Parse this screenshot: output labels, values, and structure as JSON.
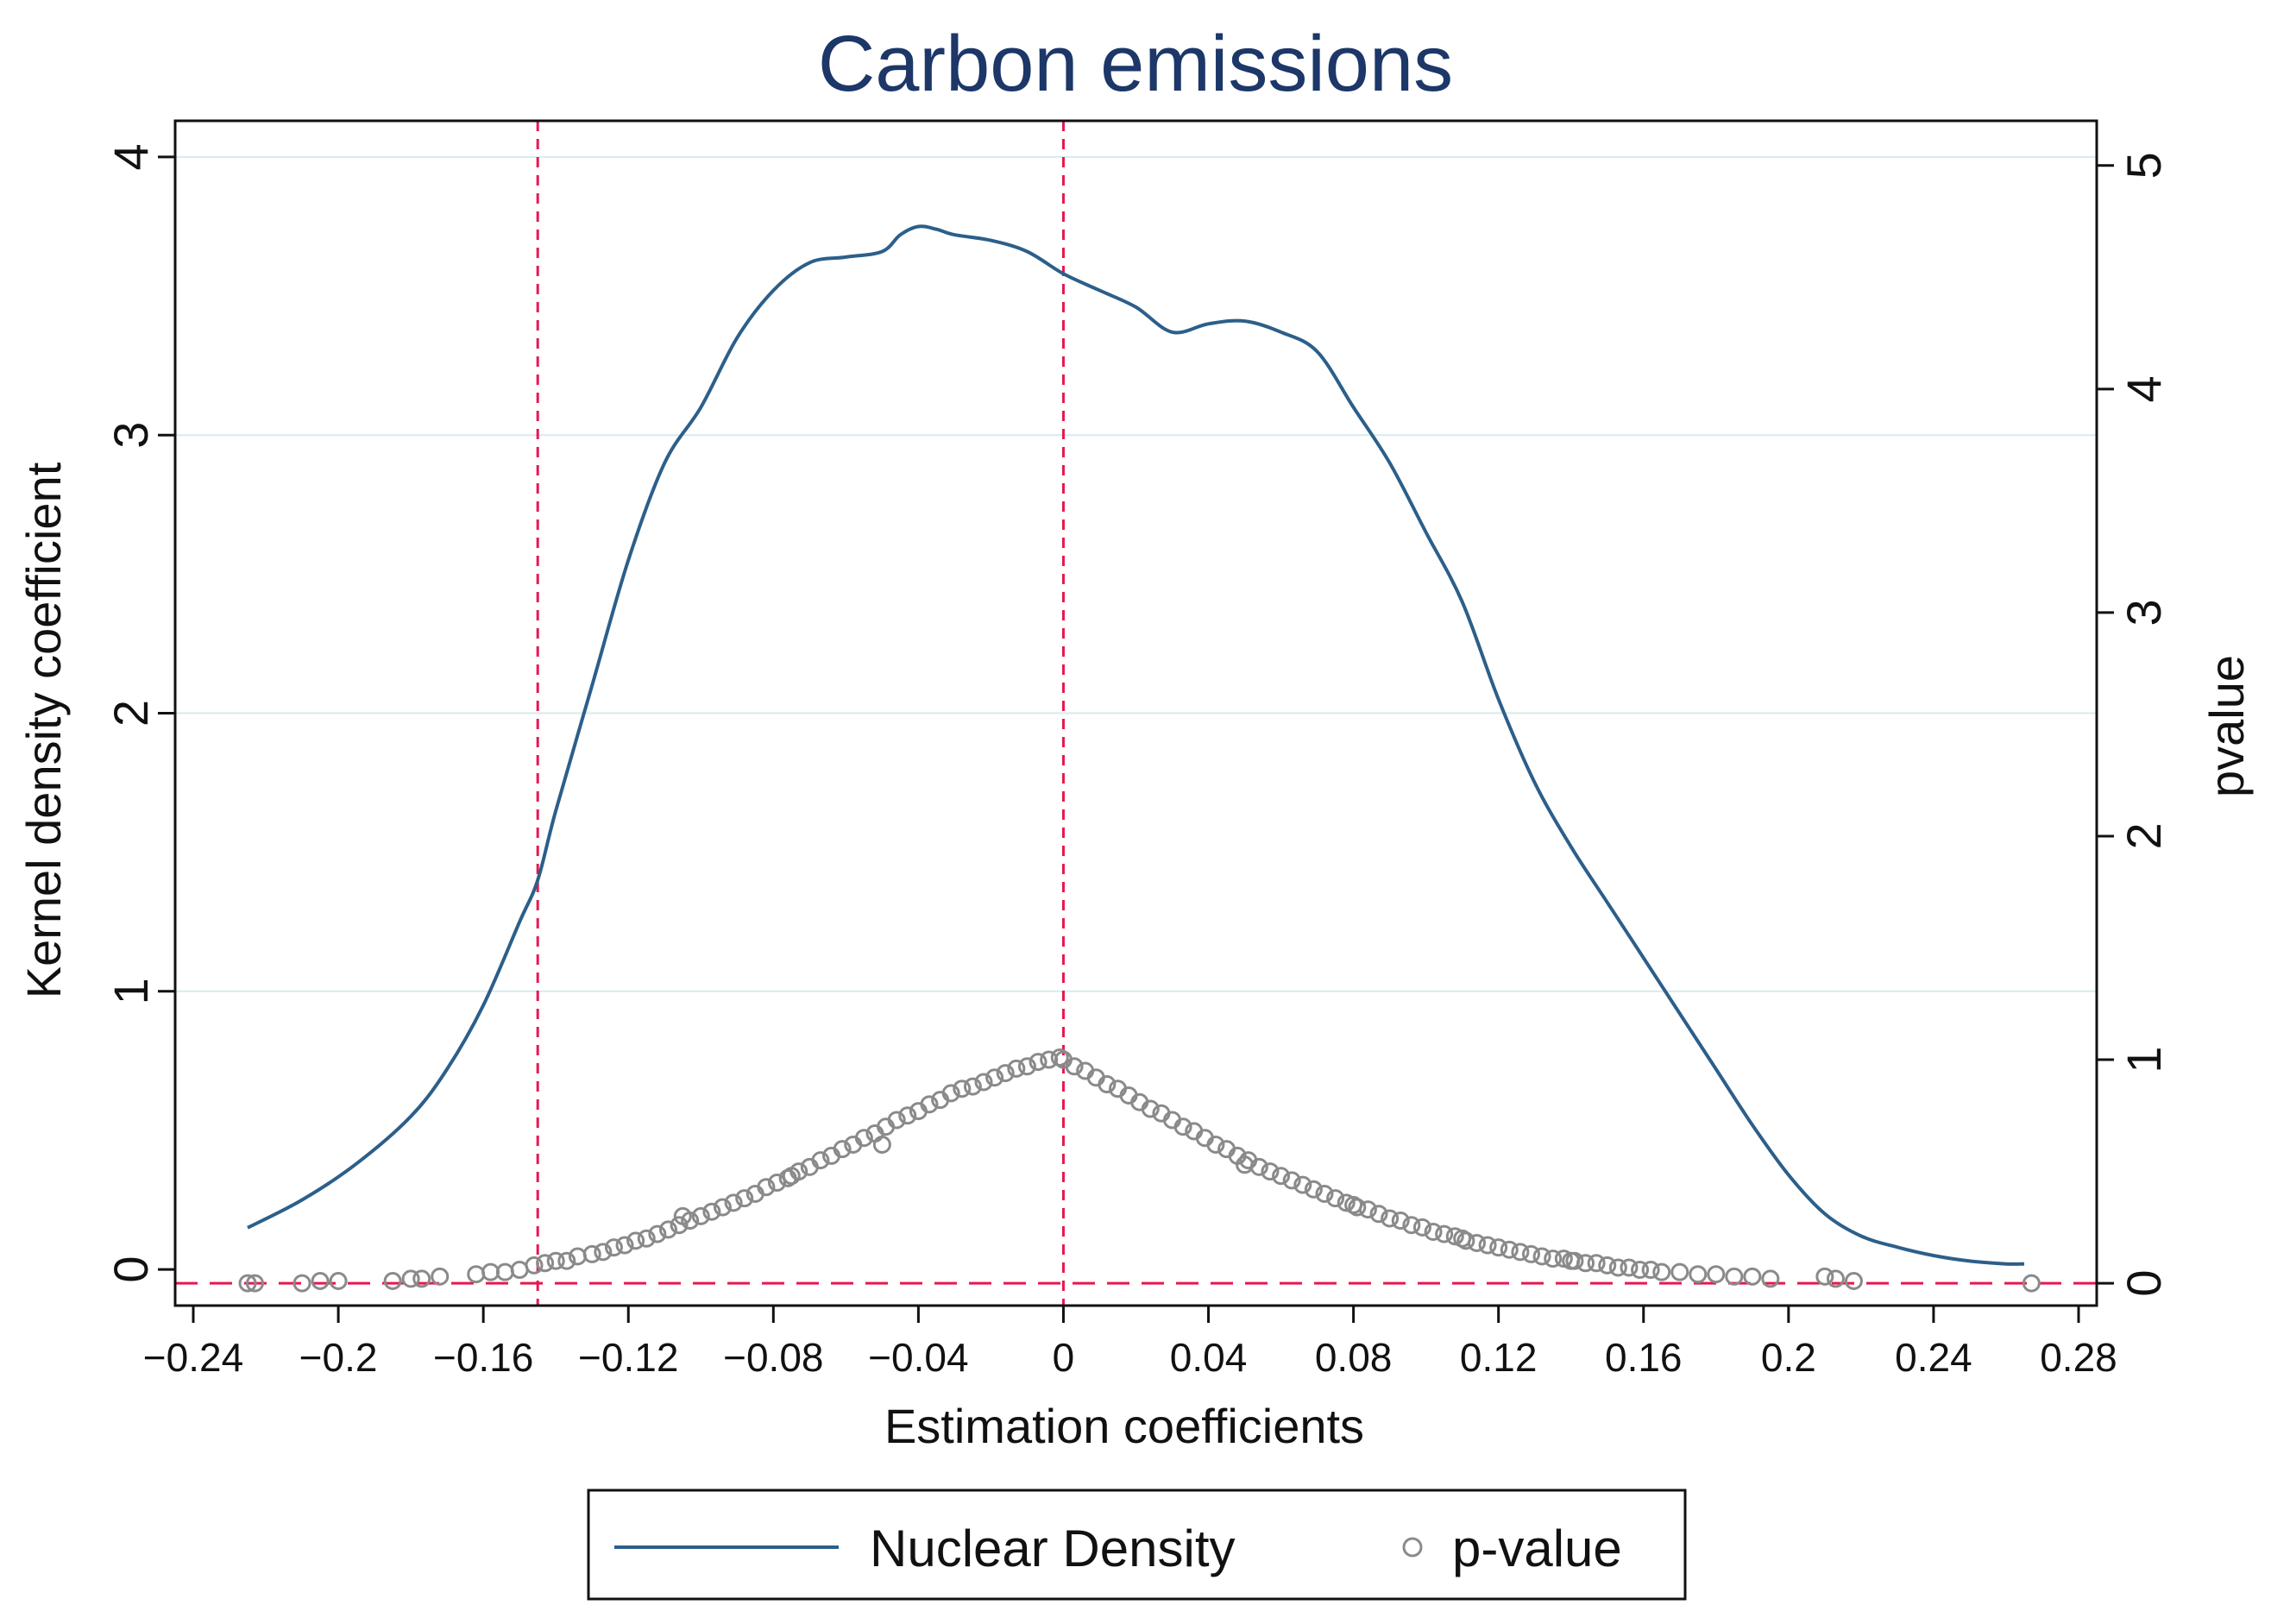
{
  "chart_data": {
    "type": "line",
    "title": "Carbon emissions",
    "xlabel": "Estimation coefficients",
    "ylabel": "Kernel density coefficient",
    "y2label": "pvalue",
    "xlim": [
      -0.245,
      0.285
    ],
    "ylim": [
      -0.13,
      4.13
    ],
    "y2lim": [
      -0.1,
      5.2
    ],
    "xticks": [
      -0.24,
      -0.2,
      -0.16,
      -0.12,
      -0.08,
      -0.04,
      0,
      0.04,
      0.08,
      0.12,
      0.16,
      0.2,
      0.24,
      0.28
    ],
    "xtick_labels": [
      "−0.24",
      "−0.2",
      "−0.16",
      "−0.12",
      "−0.08",
      "−0.04",
      "0",
      "0.04",
      "0.08",
      "0.12",
      "0.16",
      "0.2",
      "0.24",
      "0.28"
    ],
    "yticks": [
      0,
      1,
      2,
      3,
      4
    ],
    "ytick_labels": [
      "0",
      "1",
      "2",
      "3",
      "4"
    ],
    "y2ticks": [
      0,
      1,
      2,
      3,
      4,
      5
    ],
    "y2tick_labels": [
      "0",
      "1",
      "2",
      "3",
      "4",
      "5"
    ],
    "grid": "horizontal",
    "legend": {
      "position": "bottom",
      "entries": [
        "Nuclear Density",
        "p-value"
      ]
    },
    "reference_lines": {
      "vertical": [
        -0.145,
        0
      ],
      "horizontal_y2": [
        0
      ]
    },
    "colors": {
      "density": "#2c5f8a",
      "pvalue": "#8a8a8a",
      "refline": "#e8174f",
      "grid": "#d6ebee",
      "title": "#1c3768"
    },
    "series": [
      {
        "name": "Nuclear Density",
        "axis": "left",
        "x": [
          -0.225,
          -0.21,
          -0.195,
          -0.18,
          -0.17,
          -0.16,
          -0.15,
          -0.145,
          -0.14,
          -0.13,
          -0.12,
          -0.11,
          -0.1,
          -0.09,
          -0.08,
          -0.07,
          -0.06,
          -0.05,
          -0.045,
          -0.04,
          -0.035,
          -0.03,
          -0.02,
          -0.01,
          0,
          0.01,
          0.02,
          0.03,
          0.04,
          0.05,
          0.06,
          0.07,
          0.08,
          0.09,
          0.1,
          0.11,
          0.12,
          0.13,
          0.14,
          0.15,
          0.16,
          0.17,
          0.18,
          0.19,
          0.2,
          0.21,
          0.22,
          0.23,
          0.24,
          0.25,
          0.26,
          0.265
        ],
        "y": [
          0.15,
          0.25,
          0.38,
          0.55,
          0.72,
          0.95,
          1.25,
          1.4,
          1.65,
          2.1,
          2.55,
          2.9,
          3.1,
          3.35,
          3.52,
          3.62,
          3.64,
          3.66,
          3.72,
          3.75,
          3.74,
          3.72,
          3.7,
          3.66,
          3.58,
          3.52,
          3.46,
          3.37,
          3.4,
          3.41,
          3.37,
          3.3,
          3.1,
          2.9,
          2.65,
          2.4,
          2.05,
          1.75,
          1.52,
          1.32,
          1.12,
          0.92,
          0.72,
          0.52,
          0.34,
          0.2,
          0.12,
          0.08,
          0.05,
          0.03,
          0.02,
          0.02
        ]
      },
      {
        "name": "p-value",
        "axis": "right",
        "x": [
          -0.225,
          -0.223,
          -0.21,
          -0.205,
          -0.2,
          -0.185,
          -0.18,
          -0.177,
          -0.172,
          -0.162,
          -0.158,
          -0.154,
          -0.15,
          -0.146,
          -0.143,
          -0.14,
          -0.137,
          -0.134,
          -0.13,
          -0.127,
          -0.124,
          -0.121,
          -0.118,
          -0.115,
          -0.112,
          -0.109,
          -0.106,
          -0.103,
          -0.1,
          -0.097,
          -0.094,
          -0.091,
          -0.088,
          -0.085,
          -0.082,
          -0.079,
          -0.076,
          -0.073,
          -0.07,
          -0.067,
          -0.064,
          -0.061,
          -0.058,
          -0.055,
          -0.052,
          -0.049,
          -0.046,
          -0.043,
          -0.04,
          -0.037,
          -0.034,
          -0.031,
          -0.028,
          -0.025,
          -0.022,
          -0.019,
          -0.016,
          -0.013,
          -0.01,
          -0.007,
          -0.004,
          -0.001,
          0,
          0.003,
          0.006,
          0.009,
          0.012,
          0.015,
          0.018,
          0.021,
          0.024,
          0.027,
          0.03,
          0.033,
          0.036,
          0.039,
          0.042,
          0.045,
          0.048,
          0.051,
          0.054,
          0.057,
          0.06,
          0.063,
          0.066,
          0.069,
          0.072,
          0.075,
          0.078,
          0.081,
          0.084,
          0.087,
          0.09,
          0.093,
          0.096,
          0.099,
          0.102,
          0.105,
          0.108,
          0.111,
          0.114,
          0.117,
          0.12,
          0.123,
          0.126,
          0.129,
          0.132,
          0.135,
          0.138,
          0.141,
          0.144,
          0.147,
          0.15,
          0.153,
          0.156,
          0.159,
          0.162,
          0.165,
          0.17,
          0.175,
          0.18,
          0.185,
          0.19,
          0.195,
          0.21,
          0.213,
          0.218,
          0.267,
          -0.105,
          -0.075,
          -0.05,
          0.05,
          0.08,
          0.11,
          0.14
        ],
        "y": [
          0.0,
          0.0,
          0.0,
          0.01,
          0.01,
          0.01,
          0.02,
          0.02,
          0.03,
          0.04,
          0.05,
          0.05,
          0.06,
          0.08,
          0.09,
          0.1,
          0.1,
          0.12,
          0.13,
          0.14,
          0.16,
          0.17,
          0.19,
          0.2,
          0.22,
          0.24,
          0.26,
          0.28,
          0.3,
          0.32,
          0.34,
          0.36,
          0.38,
          0.4,
          0.43,
          0.45,
          0.47,
          0.5,
          0.52,
          0.55,
          0.57,
          0.6,
          0.62,
          0.65,
          0.67,
          0.7,
          0.73,
          0.75,
          0.77,
          0.8,
          0.82,
          0.85,
          0.87,
          0.88,
          0.9,
          0.92,
          0.94,
          0.96,
          0.97,
          0.99,
          1.0,
          1.01,
          1.0,
          0.97,
          0.95,
          0.92,
          0.89,
          0.87,
          0.84,
          0.81,
          0.78,
          0.76,
          0.73,
          0.7,
          0.68,
          0.65,
          0.62,
          0.6,
          0.57,
          0.55,
          0.52,
          0.5,
          0.48,
          0.46,
          0.44,
          0.42,
          0.4,
          0.38,
          0.36,
          0.34,
          0.33,
          0.31,
          0.29,
          0.28,
          0.26,
          0.25,
          0.23,
          0.22,
          0.21,
          0.19,
          0.18,
          0.17,
          0.16,
          0.15,
          0.14,
          0.13,
          0.12,
          0.11,
          0.11,
          0.1,
          0.09,
          0.09,
          0.08,
          0.07,
          0.07,
          0.06,
          0.06,
          0.05,
          0.05,
          0.04,
          0.04,
          0.03,
          0.03,
          0.02,
          0.03,
          0.02,
          0.01,
          0.0,
          0.3,
          0.48,
          0.62,
          0.53,
          0.35,
          0.2,
          0.1
        ]
      }
    ]
  }
}
